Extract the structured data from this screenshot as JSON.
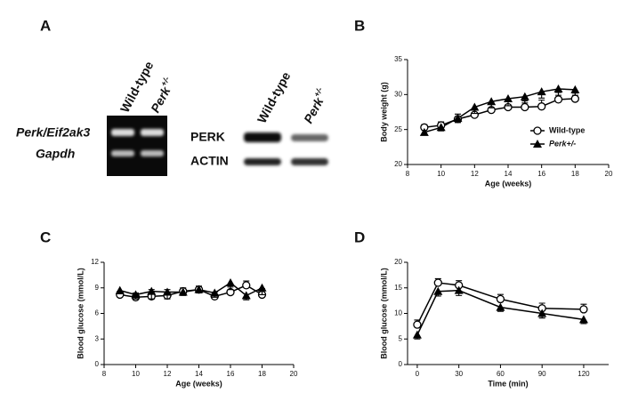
{
  "panel_labels": [
    "A",
    "B",
    "C",
    "D"
  ],
  "gel": {
    "lanes": [
      "Wild-type",
      "Perk"
    ],
    "lane_superscript": "+/-",
    "rows": [
      "Perk/Eif2ak3",
      "Gapdh"
    ],
    "blot_rows": [
      "PERK",
      "ACTIN"
    ]
  },
  "chart_data": [
    {
      "type": "line",
      "x_label": "Age (weeks)",
      "y_label": "Body weight (g)",
      "x": [
        9,
        10,
        11,
        12,
        13,
        14,
        15,
        16,
        17,
        18
      ],
      "xlim": [
        8,
        20
      ],
      "xticks": [
        8,
        10,
        12,
        14,
        16,
        18,
        20
      ],
      "ylim": [
        20,
        35
      ],
      "yticks": [
        20,
        25,
        30,
        35
      ],
      "legend": "lower right",
      "series": [
        {
          "name": "Wild-type",
          "color": "#000000",
          "marker": "circle",
          "values": [
            25.3,
            25.6,
            26.5,
            27.1,
            27.8,
            28.2,
            28.2,
            28.3,
            29.3,
            29.4
          ],
          "errors": [
            0.4,
            0.5,
            0.7,
            0.8,
            0.9,
            1.0,
            0.9,
            0.9,
            1.0,
            0.8
          ]
        },
        {
          "name": "Perk+/-",
          "color": "#000000",
          "marker": "triangle",
          "values": [
            24.6,
            25.3,
            26.6,
            28.2,
            29.0,
            29.4,
            29.7,
            30.4,
            30.8,
            30.7
          ],
          "errors": [
            0.4,
            0.5,
            0.6,
            0.9,
            0.9,
            1.0,
            0.9,
            0.9,
            0.9,
            0.8
          ]
        }
      ]
    },
    {
      "type": "line",
      "x_label": "Age (weeks)",
      "y_label": "Blood glucose (mmol/L)",
      "x": [
        9,
        10,
        11,
        12,
        13,
        14,
        15,
        16,
        17,
        18
      ],
      "xlim": [
        8,
        20
      ],
      "xticks": [
        8,
        10,
        12,
        14,
        16,
        18,
        20
      ],
      "ylim": [
        0,
        12
      ],
      "yticks": [
        0,
        3,
        6,
        9,
        12
      ],
      "series": [
        {
          "name": "Wild-type",
          "color": "#000000",
          "marker": "circle",
          "values": [
            8.2,
            7.9,
            8.0,
            8.1,
            8.6,
            8.8,
            8.0,
            8.5,
            9.3,
            8.2
          ],
          "errors": [
            0.4,
            0.5,
            0.8,
            0.7,
            0.4,
            0.4,
            0.5,
            0.6,
            0.5,
            0.7
          ]
        },
        {
          "name": "Perk+/-",
          "color": "#000000",
          "marker": "triangle",
          "values": [
            8.7,
            8.2,
            8.6,
            8.5,
            8.5,
            8.8,
            8.4,
            9.6,
            8.1,
            9.0
          ],
          "errors": [
            0.4,
            0.5,
            0.9,
            0.8,
            0.4,
            0.4,
            0.5,
            0.8,
            0.5,
            0.8
          ]
        }
      ]
    },
    {
      "type": "line",
      "x_label": "Time (min)",
      "y_label": "Blood glucose (mmol/L)",
      "x": [
        0,
        15,
        30,
        60,
        90,
        120
      ],
      "xlim": [
        -7,
        138
      ],
      "xticks": [
        0,
        30,
        60,
        90,
        120
      ],
      "ylim": [
        0,
        20
      ],
      "yticks": [
        0,
        5,
        10,
        15,
        20
      ],
      "series": [
        {
          "name": "Wild-type",
          "color": "#000000",
          "marker": "circle",
          "values": [
            7.8,
            16.0,
            15.5,
            12.8,
            11.0,
            10.8
          ],
          "errors": [
            0.9,
            0.8,
            0.9,
            0.9,
            1.0,
            1.0
          ]
        },
        {
          "name": "Perk+/-",
          "color": "#000000",
          "marker": "triangle",
          "values": [
            5.8,
            14.3,
            14.5,
            11.2,
            10.0,
            8.8
          ],
          "errors": [
            0.8,
            0.9,
            1.0,
            0.8,
            0.9,
            0.8
          ]
        }
      ]
    }
  ]
}
